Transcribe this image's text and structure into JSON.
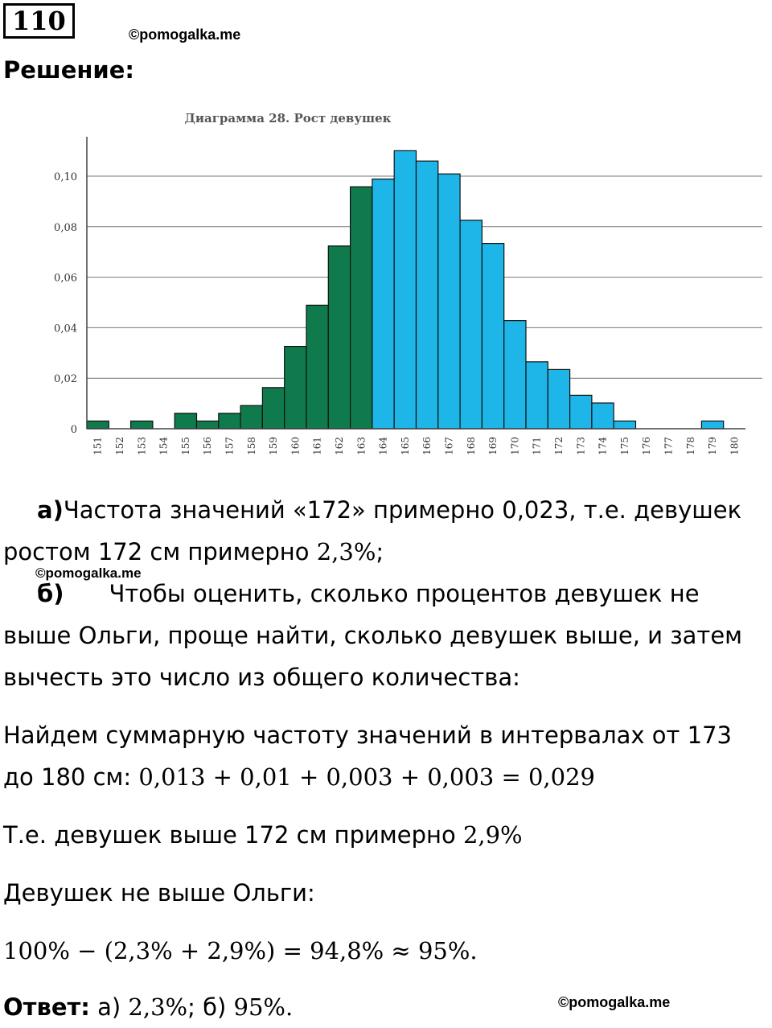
{
  "problem_number": "110",
  "watermark": "©pomogalka.me",
  "heading": "Решение:",
  "chart_data": {
    "type": "bar",
    "title": "Диаграмма 28. Рост девушек",
    "categories": [
      "151",
      "152",
      "153",
      "154",
      "155",
      "156",
      "157",
      "158",
      "159",
      "160",
      "161",
      "162",
      "163",
      "164",
      "165",
      "166",
      "167",
      "168",
      "169",
      "170",
      "171",
      "172",
      "173",
      "174",
      "175",
      "176",
      "177",
      "178",
      "179",
      "180"
    ],
    "values": [
      0.003,
      0,
      0.003,
      0,
      0.006,
      0.003,
      0.006,
      0.009,
      0.016,
      0.032,
      0.048,
      0.071,
      0.094,
      0.097,
      0.108,
      0.104,
      0.099,
      0.081,
      0.072,
      0.042,
      0.026,
      0.023,
      0.013,
      0.01,
      0.003,
      0,
      0,
      0,
      0.003,
      0
    ],
    "ylim": [
      0,
      0.11
    ],
    "yticks": [
      "0",
      "0,02",
      "0,04",
      "0,06",
      "0,08",
      "0,10"
    ],
    "grid": true,
    "colors": {
      "up_to_163": "#0f7a4c",
      "from_164": "#1eb6e8"
    }
  },
  "text": {
    "a_label": "а)",
    "a_line1": "Частота значений «172» примерно 0,023, т.е. девушек",
    "a_line2_text": "ростом 172 см примерно ",
    "a_line2_math": "2,3%",
    "a_line2_end": ";",
    "b_label": "б)",
    "b_line1": "Чтобы оценить, сколько процентов девушек не",
    "b_line2": "выше Ольги, проще найти, сколько девушек выше, и затем",
    "b_line3": "вычесть это число из общего количества:",
    "p2_line1": "Найдем суммарную частоту значений в интервалах от 173",
    "p2_line2_text": "до 180 см: ",
    "p2_line2_math": "0,013 + 0,01 + 0,003 + 0,003 = 0,029",
    "p3_text": "Т.е. девушек выше 172 см примерно ",
    "p3_math": "2,9%",
    "p4_text": "Девушек не выше Ольги:",
    "p5_math": "100% − (2,3% + 2,9%) = 94,8% ≈ 95%.",
    "answer_label": "Ответ:",
    "answer_a": " а) ",
    "answer_a_math": "2,3%",
    "answer_b": "; б) ",
    "answer_b_math": "95%."
  }
}
